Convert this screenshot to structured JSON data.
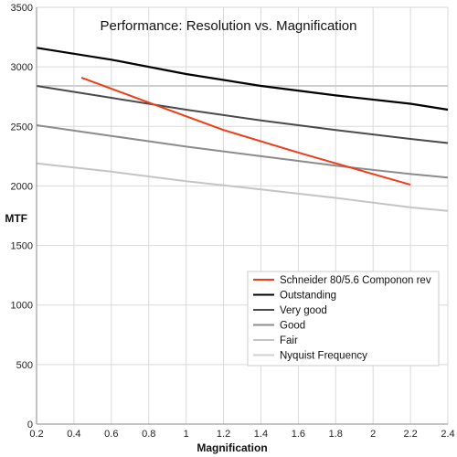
{
  "chart_data": {
    "type": "line",
    "title": "Performance: Resolution vs. Magnification",
    "xlabel": "Magnification",
    "ylabel": "MTF",
    "xlim": [
      0.2,
      2.4
    ],
    "ylim": [
      0,
      3500
    ],
    "x_ticks": [
      0.2,
      0.4,
      0.6,
      0.8,
      1,
      1.2,
      1.4,
      1.6,
      1.8,
      2,
      2.2,
      2.4
    ],
    "x_tick_labels": [
      "0.2",
      "0.4",
      "0.6",
      "0.8",
      "1",
      "1.2",
      "1.4",
      "1.6",
      "1.8",
      "2",
      "2.2",
      "2.4"
    ],
    "y_ticks": [
      0,
      500,
      1000,
      1500,
      2000,
      2500,
      3000,
      3500
    ],
    "y_tick_labels": [
      "0",
      "500",
      "1000",
      "1500",
      "2000",
      "2500",
      "3000",
      "3500"
    ],
    "grid": true,
    "legend_position": "lower-right",
    "series": [
      {
        "name": "Schneider 80/5.6 Componon rev",
        "color": "#ef3b18",
        "width": 2,
        "x": [
          0.44,
          0.8,
          1.2,
          1.6,
          2.0,
          2.2
        ],
        "y": [
          2910,
          2700,
          2470,
          2280,
          2100,
          2010
        ]
      },
      {
        "name": "Outstanding",
        "color": "#000000",
        "width": 2.2,
        "x": [
          0.2,
          0.6,
          1.0,
          1.4,
          1.8,
          2.2,
          2.4
        ],
        "y": [
          3160,
          3060,
          2940,
          2840,
          2760,
          2690,
          2640
        ]
      },
      {
        "name": "Very good",
        "color": "#4a4a4a",
        "width": 2,
        "x": [
          0.2,
          0.6,
          1.0,
          1.4,
          1.8,
          2.2,
          2.4
        ],
        "y": [
          2840,
          2740,
          2640,
          2550,
          2470,
          2395,
          2360
        ]
      },
      {
        "name": "Good",
        "color": "#8c8c8c",
        "width": 2,
        "x": [
          0.2,
          0.6,
          1.0,
          1.4,
          1.8,
          2.2,
          2.4
        ],
        "y": [
          2510,
          2420,
          2330,
          2250,
          2170,
          2100,
          2070
        ]
      },
      {
        "name": "Fair",
        "color": "#c4c4c4",
        "width": 2,
        "x": [
          0.2,
          0.6,
          1.0,
          1.4,
          1.8,
          2.2,
          2.4
        ],
        "y": [
          2190,
          2120,
          2040,
          1970,
          1900,
          1820,
          1790
        ]
      },
      {
        "name": "Nyquist Frequency",
        "color": "#cfcfcf",
        "width": 2,
        "x": [
          0.2,
          2.4
        ],
        "y": [
          2840,
          2840
        ]
      }
    ]
  }
}
